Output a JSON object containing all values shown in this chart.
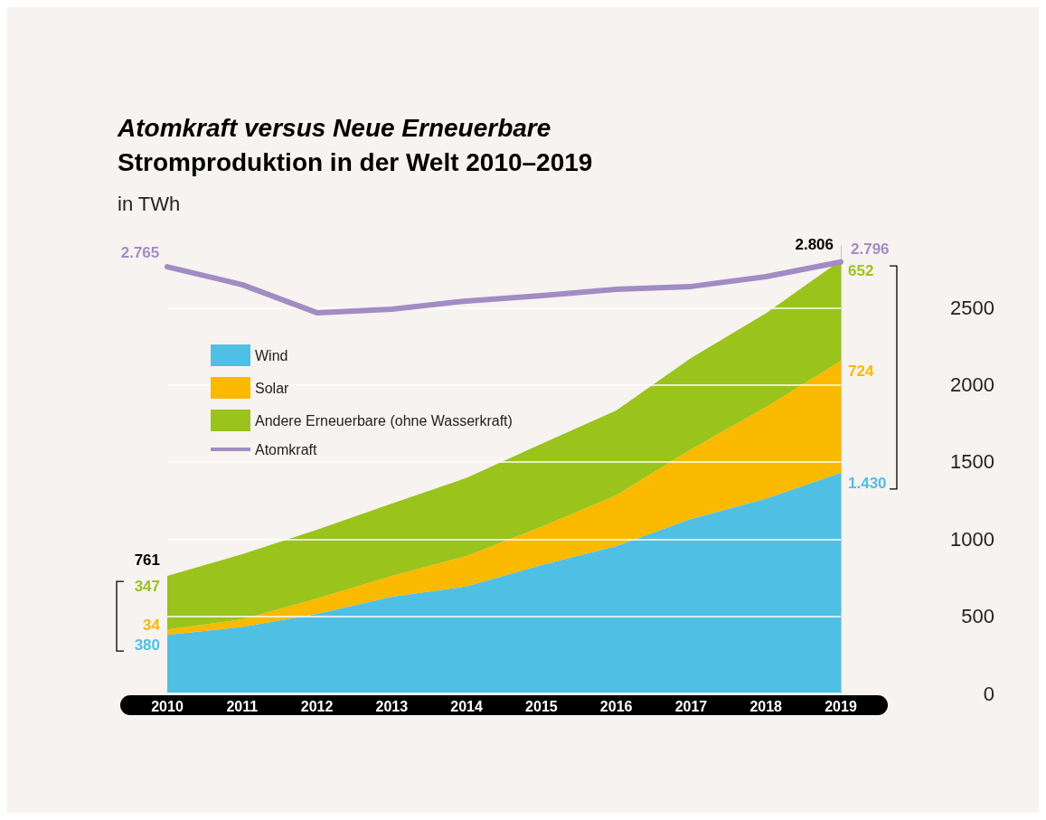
{
  "chart_data": {
    "type": "area",
    "title": "Atomkraft versus Neue Erneuerbare",
    "subtitle": "Stromproduktion in der Welt 2010–2019",
    "ylabel": "in TWh",
    "categories": [
      "2010",
      "2011",
      "2012",
      "2013",
      "2014",
      "2015",
      "2016",
      "2017",
      "2018",
      "2019"
    ],
    "stacked": true,
    "series": [
      {
        "name": "Wind",
        "color": "#4fc0e3",
        "values": [
          380,
          430,
          516,
          627,
          694,
          832,
          955,
          1131,
          1262,
          1430
        ],
        "value_labels": [
          "380",
          null,
          null,
          null,
          null,
          null,
          null,
          null,
          null,
          "1.430"
        ]
      },
      {
        "name": "Solar",
        "color": "#fbb900",
        "values": [
          34,
          50,
          99,
          135,
          197,
          248,
          330,
          451,
          593,
          724
        ],
        "value_labels": [
          "34",
          null,
          null,
          null,
          null,
          null,
          null,
          null,
          null,
          "724"
        ]
      },
      {
        "name": "Andere Erneuerbare (ohne Wasserkraft)",
        "color": "#9ac31c",
        "values": [
          347,
          422,
          446,
          469,
          506,
          537,
          549,
          592,
          609,
          652
        ],
        "value_labels": [
          "347",
          null,
          null,
          null,
          null,
          null,
          null,
          null,
          null,
          "652"
        ]
      },
      {
        "name": "Atomkraft",
        "type": "line",
        "color": "#a18cc4",
        "values": [
          2765,
          2649,
          2467,
          2490,
          2543,
          2578,
          2619,
          2637,
          2701,
          2796
        ],
        "value_labels": [
          "2.765",
          null,
          null,
          null,
          null,
          null,
          null,
          null,
          null,
          "2.796"
        ]
      }
    ],
    "totals": [
      "761",
      null,
      null,
      null,
      null,
      null,
      null,
      null,
      null,
      "2.806"
    ],
    "ylim": [
      0,
      2900
    ],
    "yticks": [
      0,
      500,
      1000,
      1500,
      2000,
      2500
    ],
    "grid": "y",
    "legend": "top left",
    "marker": "none"
  }
}
